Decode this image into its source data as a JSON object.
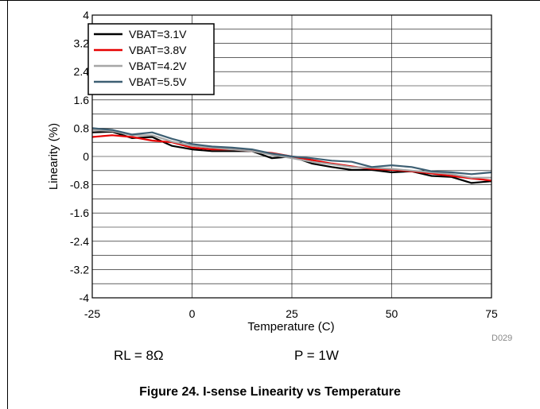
{
  "chart_data": {
    "type": "line",
    "title": "",
    "xlabel": "Temperature (C)",
    "ylabel": "Linearity (%)",
    "xlim": [
      -25,
      75
    ],
    "ylim": [
      -4,
      4
    ],
    "x_ticks": [
      -25,
      0,
      25,
      50,
      75
    ],
    "y_ticks": [
      "4",
      "3.2",
      "2.4",
      "1.6",
      "0.8",
      "0",
      "-0.8",
      "-1.6",
      "-2.4",
      "-3.2",
      "-4"
    ],
    "grid": true,
    "legend_position": "top-left",
    "series": [
      {
        "name": "VBAT=3.1V",
        "color": "#000000",
        "x": [
          -25,
          -20,
          -15,
          -10,
          -5,
          0,
          5,
          10,
          15,
          20,
          25,
          30,
          35,
          40,
          45,
          50,
          55,
          60,
          65,
          70,
          75
        ],
        "y": [
          0.68,
          0.7,
          0.52,
          0.55,
          0.3,
          0.2,
          0.15,
          0.15,
          0.15,
          -0.05,
          0.0,
          -0.2,
          -0.3,
          -0.38,
          -0.38,
          -0.45,
          -0.42,
          -0.55,
          -0.58,
          -0.75,
          -0.7
        ]
      },
      {
        "name": "VBAT=3.8V",
        "color": "#e60000",
        "x": [
          -25,
          -20,
          -15,
          -10,
          -5,
          0,
          5,
          10,
          15,
          20,
          25,
          30,
          35,
          40,
          45,
          50,
          55,
          60,
          65,
          70,
          75
        ],
        "y": [
          0.55,
          0.6,
          0.55,
          0.45,
          0.4,
          0.25,
          0.2,
          0.2,
          0.15,
          0.1,
          0.0,
          -0.1,
          -0.2,
          -0.28,
          -0.35,
          -0.38,
          -0.42,
          -0.48,
          -0.55,
          -0.62,
          -0.68
        ]
      },
      {
        "name": "VBAT=4.2V",
        "color": "#a6a6a6",
        "x": [
          -25,
          -20,
          -15,
          -10,
          -5,
          0,
          5,
          10,
          15,
          20,
          25,
          30,
          35,
          40,
          45,
          50,
          55,
          60,
          65,
          70,
          75
        ],
        "y": [
          0.75,
          0.72,
          0.6,
          0.6,
          0.42,
          0.3,
          0.25,
          0.2,
          0.15,
          0.05,
          -0.05,
          -0.15,
          -0.22,
          -0.3,
          -0.32,
          -0.35,
          -0.4,
          -0.45,
          -0.5,
          -0.6,
          -0.6
        ]
      },
      {
        "name": "VBAT=5.5V",
        "color": "#3d5f73",
        "x": [
          -25,
          -20,
          -15,
          -10,
          -5,
          0,
          5,
          10,
          15,
          20,
          25,
          30,
          35,
          40,
          45,
          50,
          55,
          60,
          65,
          70,
          75
        ],
        "y": [
          0.8,
          0.75,
          0.62,
          0.68,
          0.5,
          0.35,
          0.28,
          0.25,
          0.2,
          0.08,
          0.0,
          -0.05,
          -0.12,
          -0.15,
          -0.3,
          -0.25,
          -0.3,
          -0.42,
          -0.45,
          -0.5,
          -0.45
        ]
      }
    ]
  },
  "figure_code": "D029",
  "note_rl": "RL = 8Ω",
  "note_p": "P = 1W",
  "caption": "Figure 24. I-sense Linearity vs Temperature"
}
